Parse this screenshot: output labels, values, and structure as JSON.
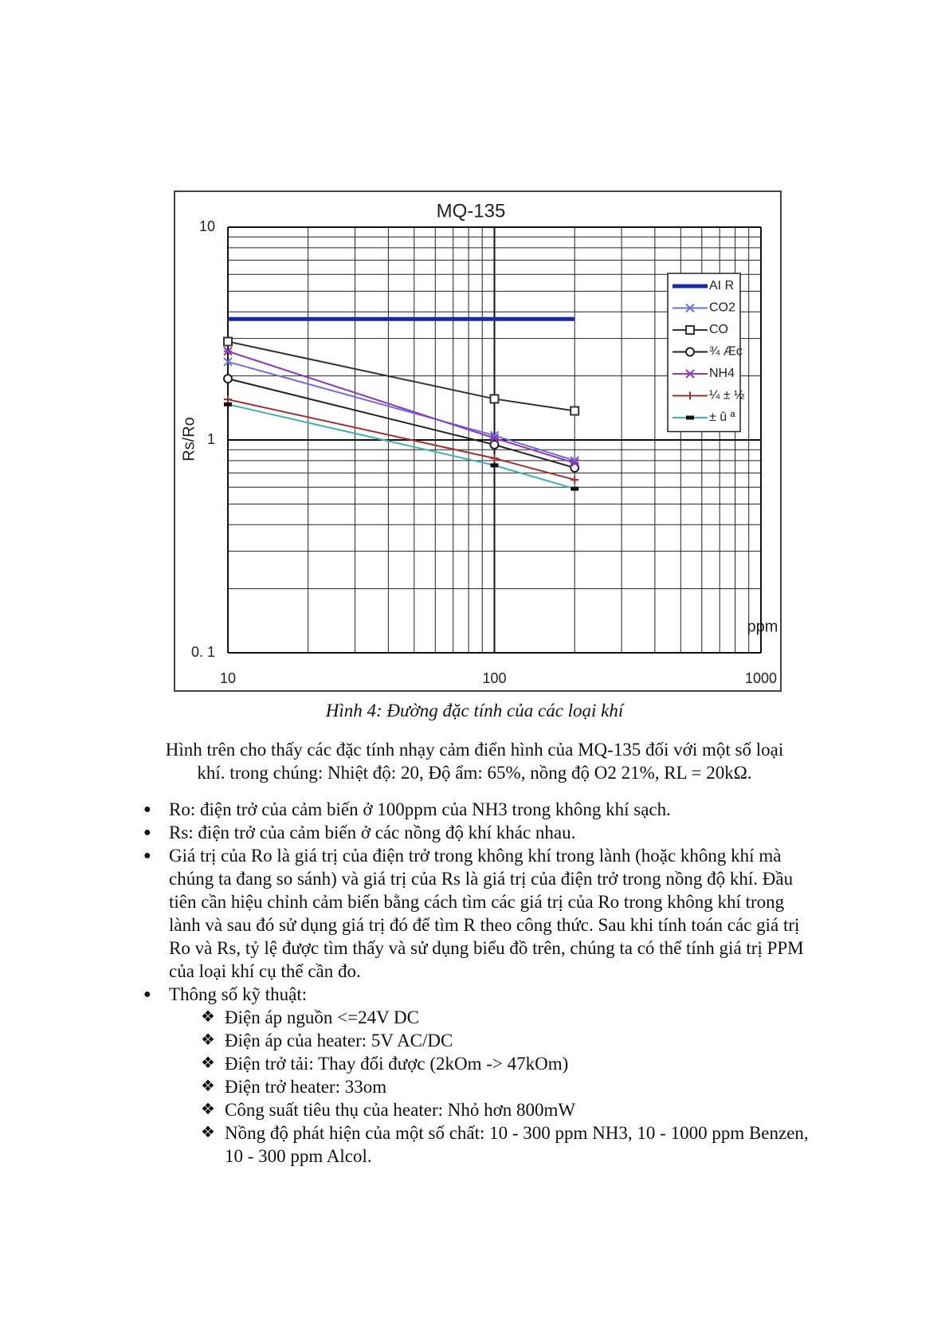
{
  "chart_data": {
    "type": "line",
    "title": "MQ-135",
    "y_label": "Rs/Ro",
    "x_label": "ppm",
    "x": [
      10,
      100,
      200
    ],
    "xlim": [
      10,
      1000
    ],
    "xticks": [
      10,
      100,
      1000
    ],
    "xlog": true,
    "ylim": [
      0.1,
      10
    ],
    "yticks": [
      {
        "value": 0.1,
        "label": "0. 1"
      },
      1,
      10
    ],
    "ylog": true,
    "grid": true,
    "legend": "upper right",
    "series": [
      {
        "name": "AI R",
        "color": "#1a2aa0",
        "marker": "none",
        "values": [
          3.7,
          3.7,
          3.7
        ]
      },
      {
        "name": "CO2",
        "color": "#6e6ee0",
        "marker": "x",
        "values": [
          2.33,
          1.05,
          0.8
        ]
      },
      {
        "name": "CO",
        "color": "#333333",
        "marker": "square",
        "values": [
          2.9,
          1.56,
          1.37
        ]
      },
      {
        "name": "¾ Æc",
        "color": "#222222",
        "marker": "circle",
        "values": [
          1.94,
          0.95,
          0.74
        ]
      },
      {
        "name": "NH4",
        "color": "#8a3ab8",
        "marker": "star",
        "values": [
          2.61,
          1.02,
          0.78
        ]
      },
      {
        "name": "¼ ± ½",
        "color": "#a03030",
        "marker": "plus",
        "values": [
          1.55,
          0.82,
          0.65
        ]
      },
      {
        "name": "± û ª",
        "color": "#40b0b0",
        "marker": "dash",
        "values": [
          1.47,
          0.76,
          0.59
        ]
      }
    ]
  },
  "caption": "Hình 4: Đường đặc tính của các loại khí",
  "paragraph_lines": [
    "Hình trên cho thấy các đặc tính nhạy cảm điển hình của MQ-135 đối với một số loại",
    "khí. trong chúng: Nhiệt độ: 20, Độ ẩm: 65%, nồng độ O2 21%, RL = 20kΩ."
  ],
  "bullets": [
    "Ro: điện trở của cảm biến ở 100ppm của NH3 trong không khí sạch.",
    "Rs: điện trở của cảm biến ở các nồng độ khí khác nhau.",
    "Giá trị của Ro là giá trị của điện trở trong không khí trong lành (hoặc không khí mà chúng ta đang so sánh) và giá trị của Rs là giá trị của điện trở trong nồng độ khí. Đầu tiên cần hiệu chỉnh cảm biến bằng cách tìm các giá trị của Ro trong không khí trong lành và sau đó sử dụng giá trị đó để tìm R theo công thức. Sau khi tính toán các giá trị Ro và Rs, tỷ lệ được tìm thấy và sử dụng biểu đồ trên, chúng ta có thể tính giá trị PPM của loại khí cụ thể cần đo.",
    "Thông số kỹ thuật:"
  ],
  "specs": [
    "Điện áp nguồn <=24V DC",
    "Điện áp của heater: 5V AC/DC",
    "Điện trở tải: Thay đổi được (2kOm -> 47kOm)",
    "Điện trở heater: 33om",
    "Công suất tiêu thụ của heater: Nhỏ hơn 800mW",
    "Nồng độ phát hiện của một số chất: 10 - 300 ppm NH3, 10 - 1000 ppm Benzen, 10 - 300 ppm Alcol."
  ]
}
